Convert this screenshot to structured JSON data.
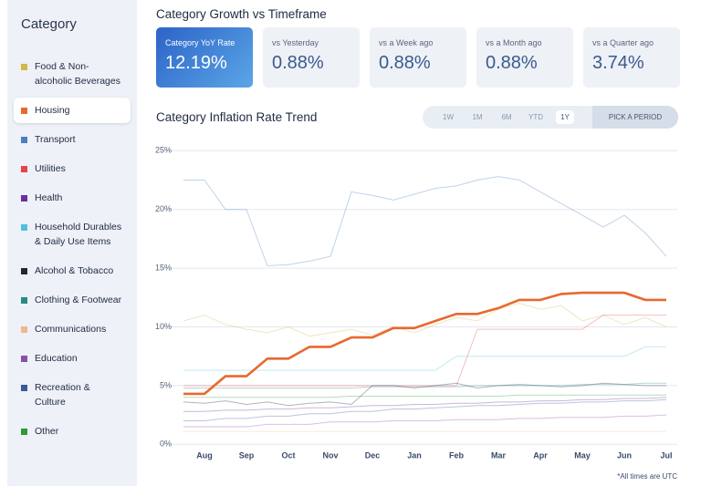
{
  "sidebar_title": "Category",
  "growth_title": "Category Growth vs Timeframe",
  "cards": [
    {
      "label": "Category YoY Rate",
      "value": "12.19%"
    },
    {
      "label": "vs Yesterday",
      "value": "0.88%"
    },
    {
      "label": "vs a Week ago",
      "value": "0.88%"
    },
    {
      "label": "vs a Month ago",
      "value": "0.88%"
    },
    {
      "label": "vs a Quarter ago",
      "value": "3.74%"
    }
  ],
  "periods": [
    "1W",
    "1M",
    "6M",
    "YTD",
    "1Y"
  ],
  "active_period": 4,
  "pick_period": "PICK A PERIOD",
  "footnote": "*All times are UTC",
  "chart_data": {
    "type": "line",
    "title": "Category Inflation Rate Trend",
    "categories": [
      null,
      "Aug",
      null,
      "Sep",
      null,
      "Oct",
      null,
      "Nov",
      null,
      "Dec",
      null,
      "Jan",
      null,
      "Feb",
      null,
      "Mar",
      null,
      "Apr",
      null,
      "May",
      null,
      "Jun",
      null,
      "Jul"
    ],
    "ylim": [
      -0.6,
      25.8
    ],
    "yticks": [
      {
        "value": 0,
        "label": "0%"
      },
      {
        "value": 5,
        "label": "5%"
      },
      {
        "value": 10,
        "label": "10%"
      },
      {
        "value": 15,
        "label": "15%"
      },
      {
        "value": 20,
        "label": "20%"
      },
      {
        "value": 25,
        "label": "25%"
      }
    ],
    "grid": true,
    "highlight": 1,
    "series": [
      {
        "name": "Food & Non-alcoholic Beverages",
        "color": "#d4b84a",
        "values": [
          10.5,
          11,
          10.2,
          9.8,
          9.5,
          10,
          9.2,
          9.5,
          9.8,
          9.3,
          10,
          9.5,
          10.2,
          10.8,
          10.5,
          11.5,
          12,
          11.5,
          11.8,
          10.5,
          11,
          10.2,
          10.8,
          10
        ]
      },
      {
        "name": "Housing",
        "color": "#e8692e",
        "values": [
          4.3,
          4.3,
          5.8,
          5.8,
          7.3,
          7.3,
          8.3,
          8.3,
          9.1,
          9.1,
          9.9,
          9.9,
          10.5,
          11.1,
          11.1,
          11.6,
          12.3,
          12.3,
          12.8,
          12.9,
          12.9,
          12.9,
          12.3,
          12.3
        ]
      },
      {
        "name": "Transport",
        "color": "#4a7fc1",
        "values": [
          22.5,
          22.5,
          20,
          20,
          15.2,
          15.3,
          15.6,
          16,
          21.5,
          21.2,
          20.8,
          21.3,
          21.8,
          22,
          22.5,
          22.8,
          22.5,
          21.5,
          20.5,
          19.5,
          18.5,
          19.5,
          18,
          16
        ]
      },
      {
        "name": "Utilities",
        "color": "#e8424a",
        "values": [
          5,
          5,
          5,
          5,
          5,
          5,
          5,
          5,
          5,
          5,
          5,
          5,
          5,
          5,
          9.8,
          9.8,
          9.8,
          9.8,
          9.8,
          9.8,
          11,
          11,
          11,
          11
        ]
      },
      {
        "name": "Health",
        "color": "#6a2fa0",
        "values": [
          2.8,
          2.8,
          2.9,
          2.9,
          3,
          3,
          3.1,
          3.1,
          3.2,
          3.3,
          3.3,
          3.4,
          3.4,
          3.5,
          3.5,
          3.6,
          3.6,
          3.7,
          3.7,
          3.8,
          3.8,
          3.9,
          3.9,
          4
        ]
      },
      {
        "name": "Household Durables & Daily Use Items",
        "color": "#4fc0e0",
        "values": [
          6.3,
          6.3,
          6.3,
          6.3,
          6.3,
          6.3,
          6.3,
          6.3,
          6.3,
          6.3,
          6.3,
          6.3,
          6.3,
          7.5,
          7.5,
          7.5,
          7.5,
          7.5,
          7.5,
          7.5,
          7.5,
          7.5,
          8.3,
          8.3
        ]
      },
      {
        "name": "Alcohol & Tobacco",
        "color": "#1f2a30",
        "values": [
          3.6,
          3.5,
          3.7,
          3.4,
          3.6,
          3.3,
          3.5,
          3.6,
          3.4,
          5,
          5,
          4.8,
          5,
          5.2,
          4.8,
          5,
          5.1,
          5,
          4.9,
          5,
          5.2,
          5.1,
          5,
          5
        ]
      },
      {
        "name": "Clothing & Footwear",
        "color": "#2a8a84",
        "values": [
          4.8,
          4.8,
          4.8,
          4.8,
          4.8,
          4.8,
          4.8,
          4.8,
          4.8,
          4.9,
          4.9,
          4.9,
          4.9,
          4.9,
          5,
          5,
          5,
          5,
          5,
          5.1,
          5.1,
          5.1,
          5.2,
          5.2
        ]
      },
      {
        "name": "Communications",
        "color": "#f0b78a",
        "values": [
          1.1,
          1.1,
          1.1,
          1.1,
          1.1,
          1.1,
          1.1,
          1.1,
          1.1,
          1.1,
          1.1,
          1.1,
          1.1,
          1.1,
          1.1,
          1.1,
          1.1,
          1.1,
          1.1,
          1.1,
          1.1,
          1.1,
          1.1,
          1.1
        ]
      },
      {
        "name": "Education",
        "color": "#8a4fa8",
        "values": [
          1.5,
          1.5,
          1.5,
          1.5,
          1.7,
          1.7,
          1.7,
          1.9,
          1.9,
          1.9,
          2,
          2,
          2,
          2.1,
          2.1,
          2.1,
          2.2,
          2.2,
          2.3,
          2.3,
          2.3,
          2.4,
          2.4,
          2.5
        ]
      },
      {
        "name": "Recreation & Culture",
        "color": "#3a5a9a",
        "values": [
          2,
          2,
          2.2,
          2.2,
          2.4,
          2.4,
          2.6,
          2.6,
          2.8,
          2.8,
          3,
          3,
          3.1,
          3.2,
          3.3,
          3.3,
          3.4,
          3.5,
          3.5,
          3.6,
          3.6,
          3.7,
          3.7,
          3.8
        ]
      },
      {
        "name": "Other",
        "color": "#2a9a3a",
        "values": [
          4,
          4,
          4,
          4,
          4,
          4,
          4,
          4,
          4.1,
          4.1,
          4.1,
          4.1,
          4.1,
          4.1,
          4.1,
          4.1,
          4.2,
          4.2,
          4.2,
          4.2,
          4.2,
          4.2,
          4.2,
          4.2
        ]
      }
    ]
  }
}
